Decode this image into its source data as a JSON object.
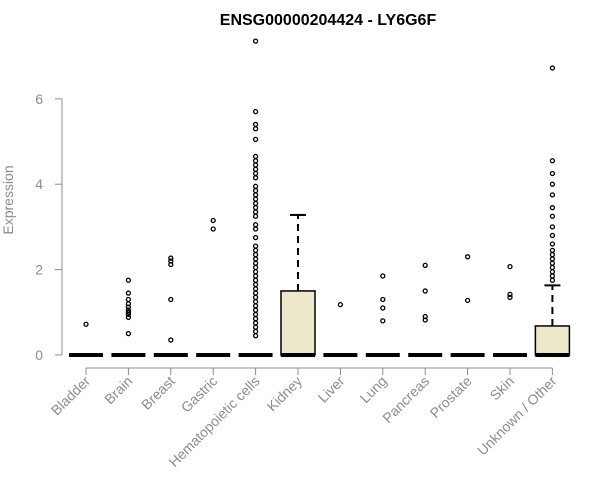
{
  "chart_data": {
    "type": "box",
    "title": "ENSG00000204424 - LY6G6F",
    "xlabel": "",
    "ylabel": "Expression",
    "ylim": [
      0,
      7.35
    ],
    "yticks": [
      0,
      2,
      4,
      6
    ],
    "grid": false,
    "colors": {
      "box_fill": "#ede7cc",
      "box_stroke": "#000000",
      "axis": "#8c8c8c",
      "title": "#000000"
    },
    "categories": [
      "Bladder",
      "Brain",
      "Breast",
      "Gastric",
      "Hematopoietic cells",
      "Kidney",
      "Liver",
      "Lung",
      "Pancreas",
      "Prostate",
      "Skin",
      "Unknown / Other"
    ],
    "boxes": [
      {
        "q1": 0,
        "median": 0,
        "q3": 0,
        "whisker_low": 0,
        "whisker_high": 0,
        "outliers": [
          0.72
        ]
      },
      {
        "q1": 0,
        "median": 0,
        "q3": 0,
        "whisker_low": 0,
        "whisker_high": 0,
        "outliers": [
          0.5,
          0.88,
          0.95,
          1.0,
          1.05,
          1.12,
          1.2,
          1.3,
          1.45,
          1.75
        ]
      },
      {
        "q1": 0,
        "median": 0,
        "q3": 0,
        "whisker_low": 0,
        "whisker_high": 0,
        "outliers": [
          0.35,
          1.3,
          2.12,
          2.2,
          2.27
        ]
      },
      {
        "q1": 0,
        "median": 0,
        "q3": 0,
        "whisker_low": 0,
        "whisker_high": 0,
        "outliers": [
          2.95,
          3.15
        ]
      },
      {
        "q1": 0,
        "median": 0,
        "q3": 0,
        "whisker_low": 0,
        "whisker_high": 0,
        "outliers": [
          0.45,
          0.55,
          0.65,
          0.75,
          0.85,
          0.95,
          1.05,
          1.15,
          1.25,
          1.35,
          1.45,
          1.55,
          1.65,
          1.75,
          1.85,
          1.95,
          2.05,
          2.15,
          2.25,
          2.35,
          2.45,
          2.55,
          2.75,
          2.95,
          3.05,
          3.25,
          3.35,
          3.45,
          3.55,
          3.65,
          3.75,
          3.85,
          3.95,
          4.15,
          4.25,
          4.35,
          4.45,
          4.55,
          4.65,
          5.05,
          5.3,
          5.4,
          5.7,
          7.35
        ]
      },
      {
        "q1": 0,
        "median": 0,
        "q3": 1.5,
        "whisker_low": 0,
        "whisker_high": 3.28,
        "outliers": []
      },
      {
        "q1": 0,
        "median": 0,
        "q3": 0,
        "whisker_low": 0,
        "whisker_high": 0,
        "outliers": [
          1.18
        ]
      },
      {
        "q1": 0,
        "median": 0,
        "q3": 0,
        "whisker_low": 0,
        "whisker_high": 0,
        "outliers": [
          0.8,
          1.1,
          1.3,
          1.85
        ]
      },
      {
        "q1": 0,
        "median": 0,
        "q3": 0,
        "whisker_low": 0,
        "whisker_high": 0,
        "outliers": [
          0.82,
          0.9,
          1.5,
          2.1
        ]
      },
      {
        "q1": 0,
        "median": 0,
        "q3": 0,
        "whisker_low": 0,
        "whisker_high": 0,
        "outliers": [
          1.28,
          2.3
        ]
      },
      {
        "q1": 0,
        "median": 0,
        "q3": 0,
        "whisker_low": 0,
        "whisker_high": 0,
        "outliers": [
          1.35,
          1.42,
          2.07
        ]
      },
      {
        "q1": 0,
        "median": 0,
        "q3": 0.68,
        "whisker_low": 0,
        "whisker_high": 1.63,
        "outliers": [
          1.75,
          1.85,
          1.95,
          2.05,
          2.15,
          2.25,
          2.35,
          2.45,
          2.6,
          2.8,
          3.0,
          3.25,
          3.45,
          3.75,
          4.0,
          4.25,
          4.55,
          6.72
        ]
      }
    ]
  }
}
